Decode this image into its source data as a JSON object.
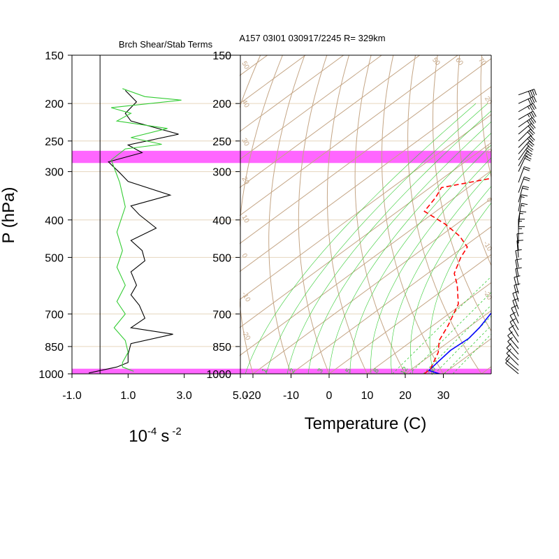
{
  "title": "A157 03I01 030917/2245 R= 329km",
  "colors": {
    "temperature": "#0000ff",
    "dewpoint": "#ff0000",
    "highlight": "#ff66ff",
    "isobar": "#e6d6be",
    "adiabat": "#c4a585",
    "mixing": "#33cc33",
    "shear_black": "#000000",
    "shear_green": "#33cc33"
  },
  "chart_data": [
    {
      "type": "line",
      "title": "Brch Shear/Stab Terms",
      "xlabel_base": "10",
      "xlabel_exp": "-4",
      "xlabel_unit": "s",
      "xlabel_unit_exp": "-2",
      "xlim": [
        -1.0,
        5.0
      ],
      "xticks": [
        "-1.0",
        "1.0",
        "3.0",
        "5.0"
      ],
      "ylabel": "P (hPa)",
      "yscale": "log",
      "ylim": [
        1000,
        150
      ],
      "yticks": [
        150,
        200,
        250,
        300,
        400,
        500,
        700,
        850,
        1000
      ],
      "series": [
        {
          "color": "black",
          "points": [
            [
              0.9,
              185
            ],
            [
              1.3,
              198
            ],
            [
              0.9,
              212
            ],
            [
              1.1,
              222
            ],
            [
              2.8,
              240
            ],
            [
              1.0,
              256
            ],
            [
              1.5,
              268
            ],
            [
              0.3,
              283
            ],
            [
              0.7,
              302
            ],
            [
              1.0,
              318
            ],
            [
              2.5,
              345
            ],
            [
              1.1,
              368
            ],
            [
              1.4,
              388
            ],
            [
              2.0,
              420
            ],
            [
              1.1,
              452
            ],
            [
              1.5,
              480
            ],
            [
              1.6,
              510
            ],
            [
              1.1,
              545
            ],
            [
              1.3,
              590
            ],
            [
              1.1,
              625
            ],
            [
              1.4,
              665
            ],
            [
              1.6,
              718
            ],
            [
              1.1,
              760
            ],
            [
              2.6,
              790
            ],
            [
              1.1,
              835
            ],
            [
              1.0,
              890
            ],
            [
              1.0,
              935
            ],
            [
              0.6,
              960
            ],
            [
              -0.4,
              995
            ]
          ]
        },
        {
          "color": "green",
          "points": [
            [
              0.8,
              183
            ],
            [
              1.6,
              192
            ],
            [
              2.9,
              196
            ],
            [
              0.4,
              205
            ],
            [
              1.1,
              212
            ],
            [
              0.6,
              222
            ],
            [
              2.4,
              232
            ],
            [
              1.1,
              245
            ],
            [
              2.2,
              255
            ],
            [
              0.9,
              262
            ],
            [
              0.4,
              280
            ],
            [
              0.7,
              320
            ],
            [
              0.9,
              370
            ],
            [
              0.6,
              430
            ],
            [
              0.8,
              480
            ],
            [
              0.6,
              530
            ],
            [
              0.9,
              590
            ],
            [
              0.6,
              650
            ],
            [
              0.9,
              700
            ],
            [
              0.5,
              760
            ],
            [
              0.9,
              820
            ],
            [
              1.0,
              880
            ],
            [
              0.8,
              935
            ],
            [
              0.8,
              960
            ],
            [
              1.2,
              985
            ]
          ]
        }
      ]
    },
    {
      "type": "line",
      "subtype": "skew-T",
      "xlabel": "Temperature (C)",
      "xlim": [
        -23,
        43
      ],
      "xticks": [
        "-20",
        "-10",
        "0",
        "10",
        "20",
        "30"
      ],
      "ylim": [
        1000,
        150
      ],
      "yticks": [
        150,
        200,
        250,
        300,
        400,
        500,
        700,
        850,
        1000
      ],
      "highlight_bands_hpa": [
        [
          265,
          285
        ],
        [
          970,
          1000
        ]
      ],
      "dry_adiabat_labels": [
        "50",
        "60",
        "70",
        "80",
        "90",
        "100",
        "110",
        "120",
        "130",
        "140",
        "150"
      ],
      "dry_adiabat_values": [
        50,
        60,
        70,
        80,
        90,
        100,
        110,
        120,
        130,
        140,
        150
      ],
      "left_labels": [
        "50",
        "40",
        "30",
        "20",
        "10",
        "0",
        "-10",
        "-20"
      ],
      "right_labels": [
        "20",
        "10",
        "0",
        "-10",
        "-20"
      ],
      "mixing_ratio_labels": [
        "12",
        "16",
        "20",
        "24",
        "28",
        "32"
      ],
      "mixing_ratio_values": [
        12,
        16,
        20,
        24,
        28,
        32
      ],
      "moist_labels": [
        "1",
        "2",
        "3",
        "5",
        "8",
        "12",
        "20"
      ],
      "series": [
        {
          "name": "temperature",
          "color": "blue",
          "points": [
            [
              29.0,
              1000
            ],
            [
              25.0,
              980
            ],
            [
              24.3,
              930
            ],
            [
              23.5,
              870
            ],
            [
              24.0,
              810
            ],
            [
              23.0,
              760
            ],
            [
              21.0,
              700
            ],
            [
              19.0,
              640
            ],
            [
              16.0,
              560
            ],
            [
              13.0,
              490
            ],
            [
              9.0,
              430
            ],
            [
              5.0,
              370
            ],
            [
              -1.0,
              330
            ],
            [
              -6.0,
              300
            ],
            [
              -13.0,
              260
            ],
            [
              -17.0,
              240
            ],
            [
              -26.0,
              200
            ],
            [
              -33.0,
              180
            ]
          ]
        },
        {
          "name": "dewpoint",
          "color": "red",
          "points": [
            [
              25.0,
              1000
            ],
            [
              24.8,
              970
            ],
            [
              21.0,
              880
            ],
            [
              17.0,
              820
            ],
            [
              14.0,
              750
            ],
            [
              9.0,
              660
            ],
            [
              2.0,
              590
            ],
            [
              -3.0,
              550
            ],
            [
              -7.0,
              500
            ],
            [
              -9.0,
              470
            ],
            [
              -15.0,
              440
            ],
            [
              -23.0,
              410
            ],
            [
              -33.0,
              380
            ],
            [
              -35.0,
              350
            ],
            [
              -37.0,
              330
            ],
            [
              -26.0,
              310
            ],
            [
              -24.0,
              280
            ],
            [
              -23.0,
              260
            ],
            [
              -27.0,
              245
            ],
            [
              -33.0,
              225
            ],
            [
              -40.0,
              205
            ]
          ]
        }
      ]
    },
    {
      "type": "barbs",
      "description": "wind barbs",
      "levels_hpa": [
        190,
        200,
        210,
        220,
        230,
        240,
        250,
        260,
        270,
        280,
        290,
        300,
        320,
        340,
        360,
        380,
        400,
        420,
        440,
        460,
        480,
        500,
        530,
        560,
        590,
        620,
        650,
        680,
        710,
        740,
        770,
        800,
        830,
        860,
        890,
        920,
        950,
        980,
        1000
      ],
      "direction_deg": [
        250,
        245,
        240,
        240,
        235,
        230,
        225,
        225,
        220,
        215,
        210,
        205,
        200,
        200,
        195,
        190,
        190,
        185,
        180,
        180,
        175,
        175,
        170,
        170,
        170,
        165,
        165,
        160,
        160,
        155,
        150,
        150,
        145,
        140,
        140,
        135,
        135,
        130,
        130
      ],
      "speed_kt": [
        40,
        40,
        35,
        35,
        35,
        30,
        30,
        30,
        25,
        25,
        25,
        20,
        20,
        20,
        20,
        15,
        15,
        15,
        15,
        15,
        10,
        10,
        10,
        10,
        10,
        10,
        10,
        10,
        10,
        10,
        10,
        10,
        10,
        10,
        10,
        10,
        10,
        10,
        10
      ]
    }
  ]
}
